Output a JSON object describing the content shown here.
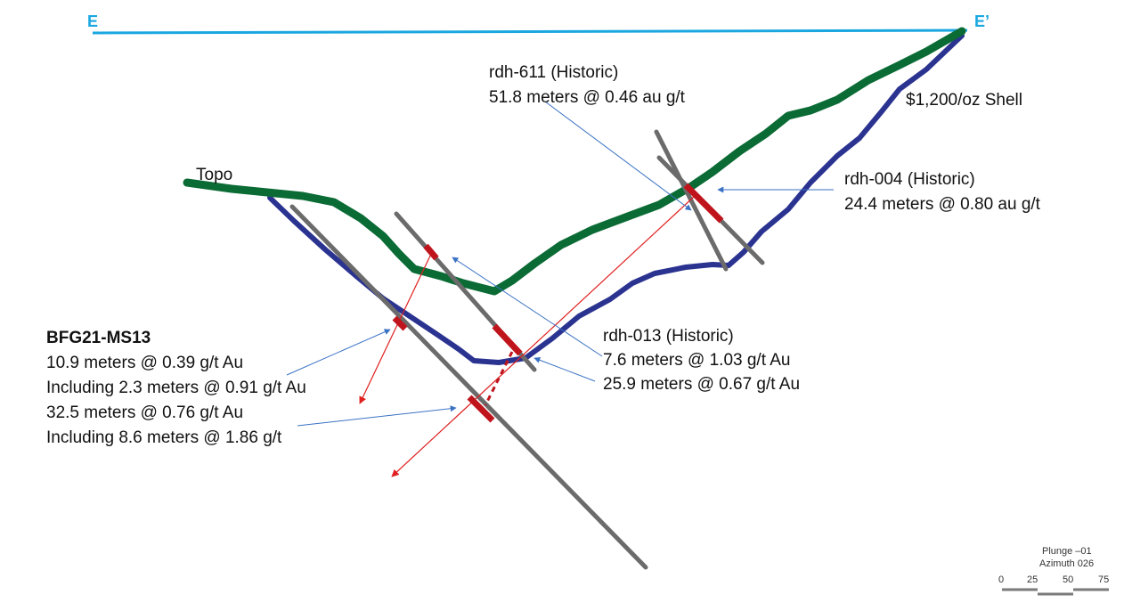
{
  "section_ends": {
    "left": "E",
    "right": "E’"
  },
  "labels": {
    "topo": "Topo",
    "shell": "$1,200/oz Shell"
  },
  "callouts": {
    "rdh611": {
      "title": "rdh-611 (Historic)",
      "lines": [
        "51.8 meters @ 0.46 au g/t"
      ]
    },
    "rdh004": {
      "title": "rdh-004 (Historic)",
      "lines": [
        "24.4 meters @ 0.80 au g/t"
      ]
    },
    "rdh013": {
      "title": "rdh-013 (Historic)",
      "lines": [
        "7.6 meters @ 1.03 g/t Au",
        "25.9 meters @ 0.67 g/t Au"
      ]
    },
    "bfg21": {
      "title": "BFG21-MS13",
      "lines": [
        "10.9 meters @ 0.39 g/t Au",
        "Including 2.3 meters @ 0.91 g/t Au",
        "32.5 meters @ 0.76 g/t Au",
        "Including 8.6 meters @ 1.86 g/t"
      ]
    }
  },
  "scale_bar": {
    "plunge": "Plunge –01",
    "azimuth": "Azimuth 026",
    "ticks": [
      "0",
      "25",
      "50",
      "75"
    ]
  },
  "colors": {
    "section_line": "#1aa7e0",
    "topo": "#0b6b35",
    "shell": "#2b3390",
    "drillhole": "#6b6b6b",
    "intercept": "#c0141c",
    "callout_arrow": "#3a72c4",
    "projection": "#e02020"
  }
}
